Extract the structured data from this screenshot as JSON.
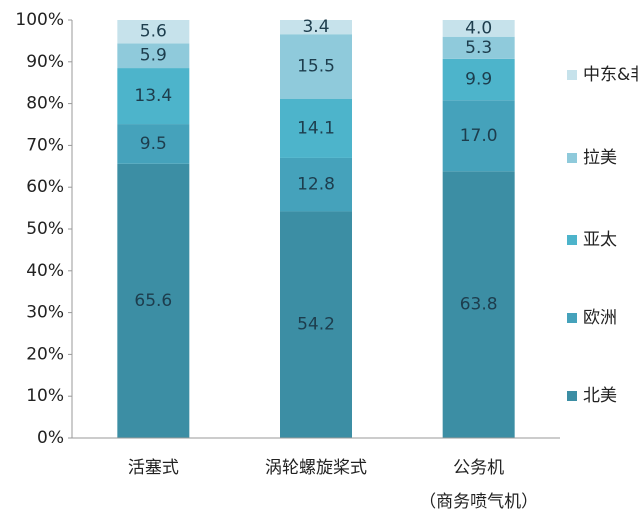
{
  "chart_data": {
    "type": "stacked-bar",
    "categories": [
      "活塞式",
      "涡轮螺旋桨式",
      "公务机\n（商务喷气机）"
    ],
    "series": [
      {
        "name": "北美",
        "color": "#3c8ea4",
        "values": [
          65.6,
          54.2,
          63.8
        ]
      },
      {
        "name": "欧洲",
        "color": "#45a2bb",
        "values": [
          9.5,
          12.8,
          17.0
        ],
        "value_labels": [
          "9.5",
          "12.8",
          "17.0"
        ]
      },
      {
        "name": "亚太",
        "color": "#4db4cb",
        "values": [
          13.4,
          14.1,
          9.9
        ]
      },
      {
        "name": "拉美",
        "color": "#8fcadb",
        "values": [
          5.9,
          15.5,
          5.3
        ]
      },
      {
        "name": "中东&非洲",
        "color": "#c6e2eb",
        "values": [
          5.6,
          3.4,
          4.0
        ],
        "value_labels": [
          "5.6",
          "3.4",
          "4.0"
        ]
      }
    ],
    "ylim": [
      0,
      100
    ],
    "yticks": [
      {
        "value": 0,
        "label": "0%"
      },
      {
        "value": 10,
        "label": "10%"
      },
      {
        "value": 20,
        "label": "20%"
      },
      {
        "value": 30,
        "label": "30%"
      },
      {
        "value": 40,
        "label": "40%"
      },
      {
        "value": 50,
        "label": "50%"
      },
      {
        "value": 60,
        "label": "60%"
      },
      {
        "value": 70,
        "label": "70%"
      },
      {
        "value": 80,
        "label": "80%"
      },
      {
        "value": 90,
        "label": "90%"
      },
      {
        "value": 100,
        "label": "100%"
      }
    ],
    "legend": "right"
  }
}
